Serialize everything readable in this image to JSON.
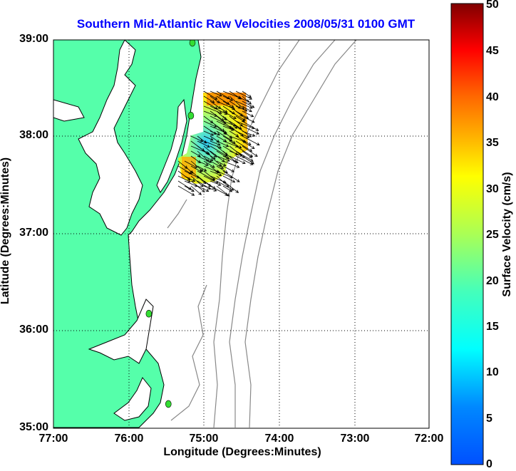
{
  "title": "Southern Mid-Atlantic Raw Velocities 2008/05/31 0100 GMT",
  "x_axis": {
    "label": "Longitude (Degrees:Minutes)",
    "ticks": [
      "77:00",
      "76:00",
      "75:00",
      "74:00",
      "73:00",
      "72:00"
    ]
  },
  "y_axis": {
    "label": "Latitude (Degrees:Minutes)",
    "ticks": [
      "39:00",
      "38:00",
      "37:00",
      "36:00",
      "35:00"
    ]
  },
  "colorbar": {
    "label": "Surface Velocity (cm/s)",
    "ticks": [
      "50",
      "45",
      "40",
      "35",
      "30",
      "25",
      "20",
      "15",
      "10",
      "5",
      "0"
    ],
    "range": [
      0,
      50
    ],
    "colormap": "jet"
  },
  "colors": {
    "land": "#55ffaa",
    "water": "#ffffff",
    "bathymetry": "#888888",
    "title": "#0000ff",
    "station": "#33dd33"
  },
  "map_extent": {
    "lon": [
      -77,
      -72
    ],
    "lat": [
      35,
      39
    ]
  },
  "stations": [
    {
      "lon": -75.15,
      "lat": 38.97
    },
    {
      "lon": -75.17,
      "lat": 38.22
    },
    {
      "lon": -75.73,
      "lat": 36.18
    },
    {
      "lon": -75.47,
      "lat": 35.25
    }
  ],
  "velocity_field": {
    "region": "off Delmarva Peninsula, approx 37.6N-38.5N, 74.5W-75.3W",
    "speed_range_cm_s": [
      5,
      40
    ],
    "dominant_direction": "southeast"
  }
}
